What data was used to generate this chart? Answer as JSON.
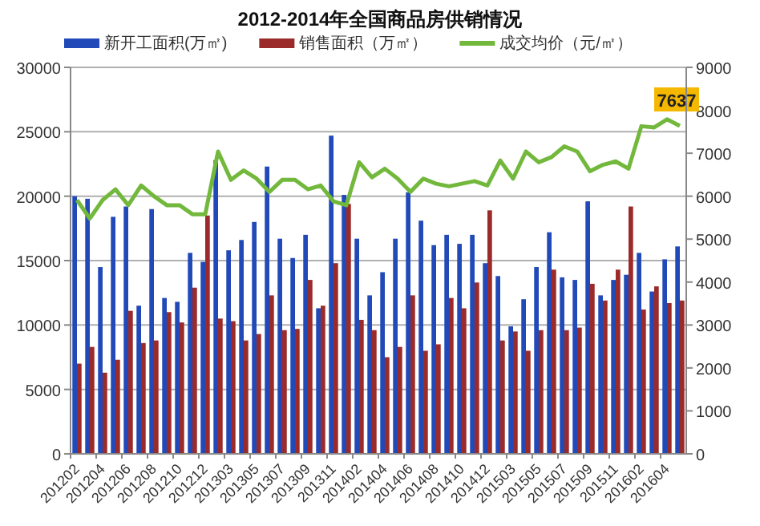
{
  "chart_data": {
    "type": "bar",
    "title": "2012-2014年全国商品房供销情况",
    "categories": [
      "201202",
      null,
      "201204",
      null,
      "201206",
      null,
      "201208",
      null,
      "201210",
      null,
      "201212",
      null,
      "201303",
      null,
      "201305",
      null,
      "201307",
      null,
      "201309",
      null,
      "201311",
      null,
      "201402",
      null,
      "201404",
      null,
      "201406",
      null,
      "201408",
      null,
      "201410",
      null,
      "201412",
      null,
      "201503",
      null,
      "201505",
      null,
      "201507",
      null,
      "201509",
      null,
      "201511",
      null,
      "201602",
      null,
      "201604",
      null
    ],
    "series": [
      {
        "name": "新开工面积(万㎡)",
        "color": "#2149b8",
        "values": [
          20000,
          19800,
          14500,
          18400,
          19200,
          11500,
          19000,
          12100,
          11800,
          15600,
          14900,
          22800,
          15800,
          16600,
          18000,
          22300,
          16700,
          15200,
          17000,
          11300,
          24700,
          20100,
          16700,
          12300,
          14100,
          16700,
          20300,
          18100,
          16200,
          17000,
          16300,
          17000,
          14800,
          13800,
          9900,
          12000,
          14500,
          17200,
          13700,
          13500,
          19600,
          12300,
          13500,
          13900,
          15600,
          12600,
          15100,
          16100
        ]
      },
      {
        "name": "销售面积（万㎡）",
        "color": "#9b2b2b",
        "values": [
          7000,
          8300,
          6300,
          7300,
          11100,
          8600,
          8800,
          11000,
          10200,
          12900,
          18500,
          10500,
          10300,
          8800,
          9300,
          12300,
          9600,
          9700,
          13500,
          11500,
          14800,
          19400,
          10400,
          9600,
          7500,
          8300,
          12300,
          8000,
          8500,
          12100,
          11300,
          13300,
          18900,
          8800,
          9500,
          8000,
          9600,
          14300,
          9600,
          9800,
          13200,
          11900,
          14300,
          19200,
          11200,
          13000,
          11700,
          11900
        ]
      },
      {
        "name": "成交均价（元/㎡）",
        "type": "line",
        "axis": "y2",
        "color": "#72b83c",
        "values": [
          5910,
          5480,
          5910,
          6160,
          5790,
          6250,
          6000,
          5790,
          5790,
          5580,
          5580,
          7040,
          6380,
          6600,
          6410,
          6100,
          6380,
          6380,
          6160,
          6250,
          5880,
          5790,
          6790,
          6440,
          6640,
          6410,
          6100,
          6410,
          6290,
          6230,
          6290,
          6350,
          6250,
          6830,
          6410,
          7040,
          6790,
          6910,
          7160,
          7040,
          6580,
          6730,
          6810,
          6640,
          7630,
          7600,
          7790,
          7637
        ],
        "value_labels": [
          null,
          null,
          null,
          null,
          null,
          null,
          null,
          null,
          null,
          null,
          null,
          null,
          null,
          null,
          null,
          null,
          null,
          null,
          null,
          null,
          null,
          null,
          null,
          null,
          null,
          null,
          null,
          null,
          null,
          null,
          null,
          null,
          null,
          null,
          null,
          null,
          null,
          null,
          null,
          null,
          null,
          null,
          null,
          null,
          null,
          null,
          null,
          "7637"
        ]
      }
    ],
    "ylim": [
      0,
      30000
    ],
    "yticks": [
      0,
      5000,
      10000,
      15000,
      20000,
      25000,
      30000
    ],
    "y2lim": [
      0,
      9000
    ],
    "y2ticks": [
      0,
      1000,
      2000,
      3000,
      4000,
      5000,
      6000,
      7000,
      8000,
      9000
    ],
    "grid": "y",
    "legend": "top"
  }
}
